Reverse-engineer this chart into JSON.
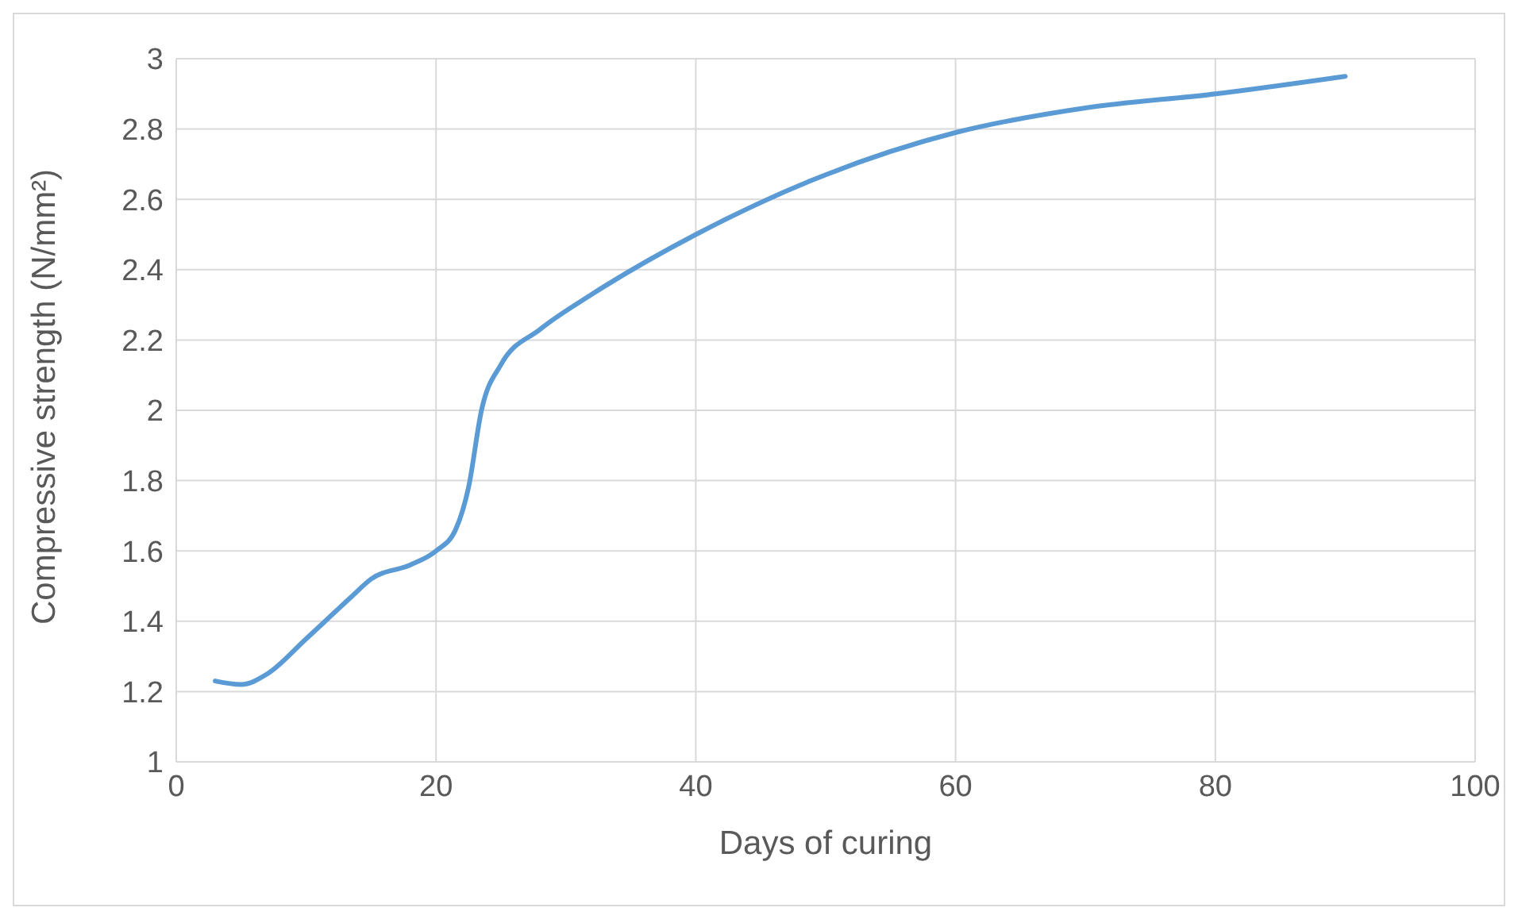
{
  "chart_data": {
    "type": "line",
    "xlabel": "Days of curing",
    "ylabel": "Compressive strength (N/mm²)",
    "x": [
      3,
      5,
      7,
      10,
      13.5,
      15,
      18,
      20,
      21.5,
      22.5,
      23.5,
      25,
      28,
      32,
      40,
      50,
      60,
      70,
      80,
      90
    ],
    "series": [
      {
        "color": "#5b9bd5",
        "values": [
          1.23,
          1.22,
          1.25,
          1.35,
          1.47,
          1.52,
          1.56,
          1.6,
          1.66,
          1.78,
          2.0,
          2.13,
          2.23,
          2.33,
          2.5,
          2.67,
          2.79,
          2.86,
          2.9,
          2.95
        ]
      }
    ],
    "xlim": [
      0,
      100
    ],
    "xticks": [
      0,
      20,
      40,
      60,
      80,
      100
    ],
    "ylim": [
      1,
      3
    ],
    "yticks": [
      1,
      1.2,
      1.4,
      1.6,
      1.8,
      2,
      2.2,
      2.4,
      2.6,
      2.8,
      3
    ],
    "grid": true,
    "marker": "none",
    "line_style": "solid"
  }
}
